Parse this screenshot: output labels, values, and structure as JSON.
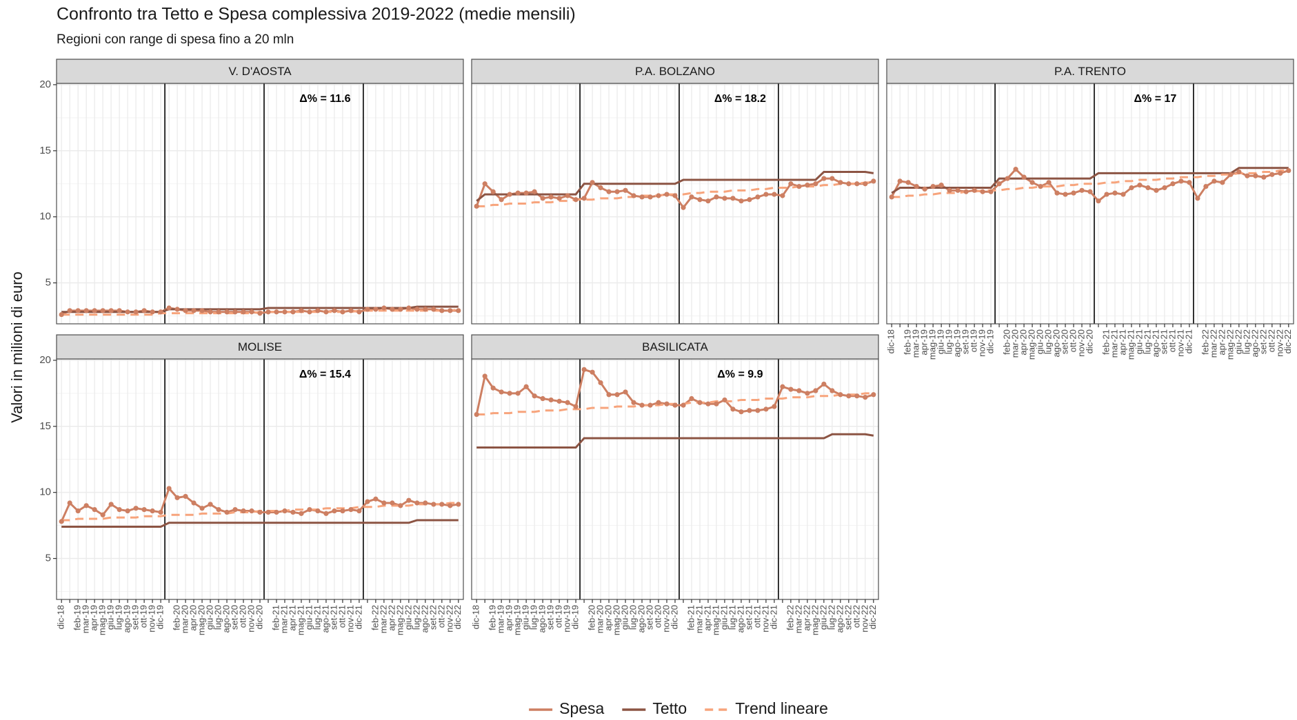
{
  "title": "Confronto tra Tetto e Spesa complessiva 2019-2022 (medie mensili)",
  "subtitle": "Regioni con range di spesa fino a 20 mln",
  "ylabel": "Valori in milioni di euro",
  "categories": [
    "dic-18",
    null,
    "feb-19",
    "mar-19",
    "apr-19",
    "mag-19",
    "giu-19",
    "lug-19",
    "ago-19",
    "set-19",
    "ott-19",
    "nov-19",
    "dic-19",
    null,
    "feb-20",
    "mar-20",
    "apr-20",
    "mag-20",
    "giu-20",
    "lug-20",
    "ago-20",
    "set-20",
    "ott-20",
    "nov-20",
    "dic-20",
    null,
    "feb-21",
    "mar-21",
    "apr-21",
    "mag-21",
    "giu-21",
    "lug-21",
    "ago-21",
    "set-21",
    "ott-21",
    "nov-21",
    "dic-21",
    null,
    "feb-22",
    "mar-22",
    "apr-22",
    "mag-22",
    "giu-22",
    "lug-22",
    "ago-22",
    "set-22",
    "ott-22",
    "nov-22",
    "dic-22"
  ],
  "ylim": [
    1.9,
    20.1
  ],
  "yticks": [
    5,
    10,
    15,
    20
  ],
  "grid": true,
  "legend": {
    "position": "bottom",
    "entries": [
      {
        "name": "Spesa",
        "color": "#cd7f62",
        "dash": "solid",
        "points": true
      },
      {
        "name": "Tetto",
        "color": "#8c5443",
        "dash": "solid",
        "points": false
      },
      {
        "name": "Trend lineare",
        "color": "#f7a47c",
        "dash": "dashed",
        "points": false
      }
    ]
  },
  "chart_data": [
    {
      "type": "line",
      "title": "V. D'AOSTA",
      "annotation": "Δ% = 11.6",
      "series": [
        {
          "values": [
            2.6,
            2.9,
            2.9,
            2.9,
            2.9,
            2.9,
            2.9,
            2.9,
            2.8,
            2.8,
            2.9,
            2.8,
            2.8,
            3.1,
            3.0,
            2.9,
            2.9,
            2.9,
            2.8,
            2.8,
            2.8,
            2.8,
            2.8,
            2.8,
            2.7,
            2.8,
            2.8,
            2.8,
            2.8,
            2.9,
            2.8,
            2.9,
            2.8,
            2.9,
            2.8,
            2.9,
            2.8,
            3.0,
            3.0,
            3.1,
            3.0,
            3.0,
            3.1,
            3.0,
            3.0,
            3.0,
            2.9,
            2.9,
            2.9
          ]
        },
        {
          "values": [
            2.8,
            2.8,
            2.8,
            2.8,
            2.8,
            2.8,
            2.8,
            2.8,
            2.8,
            2.8,
            2.8,
            2.8,
            2.8,
            3.0,
            3.0,
            3.0,
            3.0,
            3.0,
            3.0,
            3.0,
            3.0,
            3.0,
            3.0,
            3.0,
            3.0,
            3.1,
            3.1,
            3.1,
            3.1,
            3.1,
            3.1,
            3.1,
            3.1,
            3.1,
            3.1,
            3.1,
            3.1,
            3.1,
            3.1,
            3.1,
            3.1,
            3.1,
            3.1,
            3.2,
            3.2,
            3.2,
            3.2,
            3.2,
            3.2
          ]
        },
        {
          "values": [
            2.6,
            2.6,
            2.6,
            2.6,
            2.6,
            2.6,
            2.6,
            2.6,
            2.6,
            2.6,
            2.6,
            2.6,
            2.7,
            2.7,
            2.7,
            2.7,
            2.7,
            2.7,
            2.7,
            2.7,
            2.7,
            2.7,
            2.7,
            2.7,
            2.8,
            2.8,
            2.8,
            2.8,
            2.8,
            2.8,
            2.8,
            2.8,
            2.8,
            2.8,
            2.8,
            2.8,
            2.9,
            2.9,
            2.9,
            2.9,
            2.9,
            2.9,
            2.9,
            2.9,
            2.9,
            2.9,
            2.9,
            2.9,
            3.0
          ]
        }
      ]
    },
    {
      "type": "line",
      "title": "P.A. BOLZANO",
      "annotation": "Δ% = 18.2",
      "series": [
        {
          "values": [
            10.8,
            12.5,
            11.9,
            11.3,
            11.7,
            11.8,
            11.8,
            11.9,
            11.4,
            11.5,
            11.4,
            11.6,
            11.3,
            11.4,
            12.6,
            12.2,
            11.9,
            11.9,
            12.0,
            11.6,
            11.5,
            11.5,
            11.6,
            11.7,
            11.6,
            10.7,
            11.5,
            11.3,
            11.2,
            11.5,
            11.4,
            11.4,
            11.2,
            11.3,
            11.5,
            11.7,
            11.7,
            11.6,
            12.5,
            12.3,
            12.4,
            12.5,
            12.9,
            12.9,
            12.6,
            12.5,
            12.5,
            12.5,
            12.7
          ]
        },
        {
          "values": [
            11.2,
            11.7,
            11.7,
            11.7,
            11.7,
            11.7,
            11.7,
            11.7,
            11.7,
            11.7,
            11.7,
            11.7,
            11.7,
            12.5,
            12.5,
            12.5,
            12.5,
            12.5,
            12.5,
            12.5,
            12.5,
            12.5,
            12.5,
            12.5,
            12.5,
            12.8,
            12.8,
            12.8,
            12.8,
            12.8,
            12.8,
            12.8,
            12.8,
            12.8,
            12.8,
            12.8,
            12.8,
            12.8,
            12.8,
            12.8,
            12.8,
            12.8,
            13.4,
            13.4,
            13.4,
            13.4,
            13.4,
            13.4,
            13.3
          ]
        },
        {
          "values": [
            10.8,
            10.8,
            10.9,
            10.9,
            11.0,
            11.0,
            11.0,
            11.1,
            11.1,
            11.1,
            11.2,
            11.2,
            11.3,
            11.3,
            11.3,
            11.4,
            11.4,
            11.4,
            11.5,
            11.5,
            11.6,
            11.6,
            11.6,
            11.7,
            11.7,
            11.7,
            11.8,
            11.8,
            11.9,
            11.9,
            11.9,
            12.0,
            12.0,
            12.0,
            12.1,
            12.1,
            12.2,
            12.2,
            12.2,
            12.3,
            12.3,
            12.3,
            12.4,
            12.4,
            12.5,
            12.5,
            12.5,
            12.6,
            12.6
          ]
        }
      ]
    },
    {
      "type": "line",
      "title": "P.A. TRENTO",
      "annotation": "Δ% = 17",
      "series": [
        {
          "values": [
            11.5,
            12.7,
            12.6,
            12.3,
            12.1,
            12.3,
            12.4,
            12.0,
            12.0,
            11.9,
            12.0,
            11.9,
            11.9,
            12.5,
            12.9,
            13.6,
            13.0,
            12.6,
            12.3,
            12.6,
            11.8,
            11.7,
            11.8,
            12.0,
            11.9,
            11.2,
            11.7,
            11.8,
            11.7,
            12.2,
            12.4,
            12.2,
            12.0,
            12.2,
            12.5,
            12.7,
            12.6,
            11.4,
            12.3,
            12.7,
            12.6,
            13.2,
            13.4,
            13.1,
            13.1,
            13.0,
            13.2,
            13.3,
            13.5
          ]
        },
        {
          "values": [
            11.8,
            12.2,
            12.2,
            12.2,
            12.2,
            12.2,
            12.2,
            12.2,
            12.2,
            12.2,
            12.2,
            12.2,
            12.2,
            12.9,
            12.9,
            12.9,
            12.9,
            12.9,
            12.9,
            12.9,
            12.9,
            12.9,
            12.9,
            12.9,
            12.9,
            13.3,
            13.3,
            13.3,
            13.3,
            13.3,
            13.3,
            13.3,
            13.3,
            13.3,
            13.3,
            13.3,
            13.3,
            13.3,
            13.3,
            13.3,
            13.3,
            13.3,
            13.7,
            13.7,
            13.7,
            13.7,
            13.7,
            13.7,
            13.7
          ]
        },
        {
          "values": [
            11.5,
            11.5,
            11.6,
            11.6,
            11.7,
            11.7,
            11.8,
            11.8,
            11.8,
            11.9,
            11.9,
            12.0,
            12.0,
            12.0,
            12.1,
            12.1,
            12.2,
            12.2,
            12.3,
            12.3,
            12.3,
            12.4,
            12.4,
            12.5,
            12.5,
            12.5,
            12.6,
            12.6,
            12.7,
            12.7,
            12.8,
            12.8,
            12.8,
            12.9,
            12.9,
            13.0,
            13.0,
            13.0,
            13.1,
            13.1,
            13.2,
            13.2,
            13.3,
            13.3,
            13.3,
            13.4,
            13.4,
            13.5,
            13.5
          ]
        }
      ]
    },
    {
      "type": "line",
      "title": "MOLISE",
      "annotation": "Δ% = 15.4",
      "series": [
        {
          "values": [
            7.8,
            9.2,
            8.6,
            9.0,
            8.7,
            8.3,
            9.1,
            8.7,
            8.6,
            8.8,
            8.7,
            8.6,
            8.5,
            10.3,
            9.6,
            9.7,
            9.2,
            8.8,
            9.1,
            8.7,
            8.5,
            8.7,
            8.6,
            8.6,
            8.5,
            8.5,
            8.5,
            8.6,
            8.5,
            8.4,
            8.7,
            8.6,
            8.4,
            8.6,
            8.6,
            8.7,
            8.6,
            9.3,
            9.5,
            9.2,
            9.2,
            9.0,
            9.4,
            9.2,
            9.2,
            9.1,
            9.1,
            9.0,
            9.1
          ]
        },
        {
          "values": [
            7.4,
            7.4,
            7.4,
            7.4,
            7.4,
            7.4,
            7.4,
            7.4,
            7.4,
            7.4,
            7.4,
            7.4,
            7.4,
            7.7,
            7.7,
            7.7,
            7.7,
            7.7,
            7.7,
            7.7,
            7.7,
            7.7,
            7.7,
            7.7,
            7.7,
            7.7,
            7.7,
            7.7,
            7.7,
            7.7,
            7.7,
            7.7,
            7.7,
            7.7,
            7.7,
            7.7,
            7.7,
            7.7,
            7.7,
            7.7,
            7.7,
            7.7,
            7.7,
            7.9,
            7.9,
            7.9,
            7.9,
            7.9,
            7.9
          ]
        },
        {
          "values": [
            7.9,
            7.9,
            8.0,
            8.0,
            8.0,
            8.0,
            8.1,
            8.1,
            8.1,
            8.1,
            8.2,
            8.2,
            8.2,
            8.3,
            8.3,
            8.3,
            8.3,
            8.4,
            8.4,
            8.4,
            8.4,
            8.5,
            8.5,
            8.5,
            8.6,
            8.6,
            8.6,
            8.6,
            8.7,
            8.7,
            8.7,
            8.7,
            8.8,
            8.8,
            8.8,
            8.8,
            8.9,
            8.9,
            8.9,
            9.0,
            9.0,
            9.0,
            9.0,
            9.1,
            9.1,
            9.1,
            9.1,
            9.2,
            9.2
          ]
        }
      ]
    },
    {
      "type": "line",
      "title": "BASILICATA",
      "annotation": "Δ% = 9.9",
      "series": [
        {
          "values": [
            15.9,
            18.8,
            17.9,
            17.6,
            17.5,
            17.5,
            18.0,
            17.3,
            17.1,
            17.0,
            16.9,
            16.8,
            16.5,
            19.3,
            19.1,
            18.3,
            17.4,
            17.4,
            17.6,
            16.8,
            16.6,
            16.6,
            16.8,
            16.7,
            16.6,
            16.6,
            17.1,
            16.8,
            16.7,
            16.7,
            17.0,
            16.3,
            16.1,
            16.2,
            16.2,
            16.3,
            16.5,
            18.0,
            17.8,
            17.7,
            17.5,
            17.7,
            18.2,
            17.7,
            17.4,
            17.3,
            17.3,
            17.2,
            17.4
          ]
        },
        {
          "values": [
            13.4,
            13.4,
            13.4,
            13.4,
            13.4,
            13.4,
            13.4,
            13.4,
            13.4,
            13.4,
            13.4,
            13.4,
            13.4,
            14.1,
            14.1,
            14.1,
            14.1,
            14.1,
            14.1,
            14.1,
            14.1,
            14.1,
            14.1,
            14.1,
            14.1,
            14.1,
            14.1,
            14.1,
            14.1,
            14.1,
            14.1,
            14.1,
            14.1,
            14.1,
            14.1,
            14.1,
            14.1,
            14.1,
            14.1,
            14.1,
            14.1,
            14.1,
            14.1,
            14.4,
            14.4,
            14.4,
            14.4,
            14.4,
            14.3
          ]
        },
        {
          "values": [
            15.9,
            15.9,
            16.0,
            16.0,
            16.0,
            16.1,
            16.1,
            16.1,
            16.2,
            16.2,
            16.2,
            16.3,
            16.3,
            16.3,
            16.4,
            16.4,
            16.4,
            16.5,
            16.5,
            16.5,
            16.6,
            16.6,
            16.6,
            16.7,
            16.7,
            16.7,
            16.8,
            16.8,
            16.8,
            16.9,
            16.9,
            16.9,
            17.0,
            17.0,
            17.0,
            17.1,
            17.1,
            17.1,
            17.2,
            17.2,
            17.2,
            17.3,
            17.3,
            17.3,
            17.4,
            17.4,
            17.4,
            17.5,
            17.5
          ]
        }
      ]
    }
  ]
}
